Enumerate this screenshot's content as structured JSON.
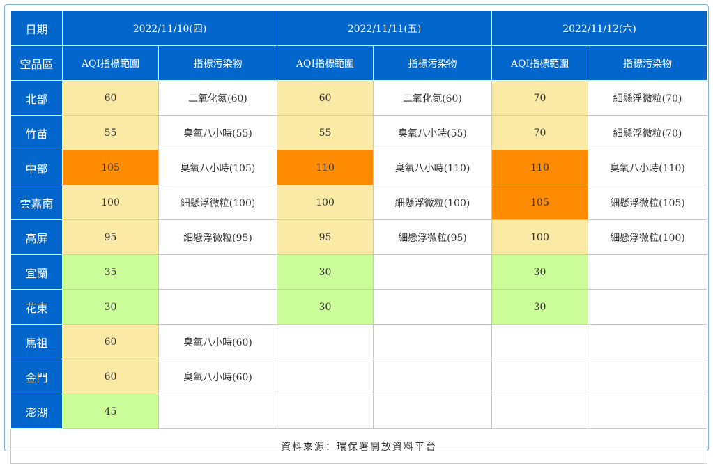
{
  "header": {
    "date_label": "日期",
    "dates": [
      "2022/11/10(四)",
      "2022/11/11(五)",
      "2022/11/12(六)"
    ],
    "region_label": "空品區",
    "aqi_label": "AQI指標範圍",
    "pollutant_label": "指標污染物"
  },
  "colors": {
    "header_bg": "#0066cc",
    "good_green": "#ccff99",
    "moderate_yellow": "#fbeaa5",
    "unhealthy_sensitive_orange": "#ff8c00"
  },
  "rows": [
    {
      "region": "北部",
      "days": [
        {
          "aqi": "60",
          "color": "yellow",
          "pollutant": "二氧化氮(60)"
        },
        {
          "aqi": "60",
          "color": "yellow",
          "pollutant": "二氧化氮(60)"
        },
        {
          "aqi": "70",
          "color": "yellow",
          "pollutant": "細懸浮微粒(70)"
        }
      ]
    },
    {
      "region": "竹苗",
      "days": [
        {
          "aqi": "55",
          "color": "yellow",
          "pollutant": "臭氧八小時(55)"
        },
        {
          "aqi": "55",
          "color": "yellow",
          "pollutant": "臭氧八小時(55)"
        },
        {
          "aqi": "70",
          "color": "yellow",
          "pollutant": "細懸浮微粒(70)"
        }
      ]
    },
    {
      "region": "中部",
      "days": [
        {
          "aqi": "105",
          "color": "orange",
          "pollutant": "臭氧八小時(105)"
        },
        {
          "aqi": "110",
          "color": "orange",
          "pollutant": "臭氧八小時(110)"
        },
        {
          "aqi": "110",
          "color": "orange",
          "pollutant": "臭氧八小時(110)"
        }
      ]
    },
    {
      "region": "雲嘉南",
      "days": [
        {
          "aqi": "100",
          "color": "yellow",
          "pollutant": "細懸浮微粒(100)"
        },
        {
          "aqi": "100",
          "color": "yellow",
          "pollutant": "細懸浮微粒(100)"
        },
        {
          "aqi": "105",
          "color": "orange",
          "pollutant": "細懸浮微粒(105)"
        }
      ]
    },
    {
      "region": "高屏",
      "days": [
        {
          "aqi": "95",
          "color": "yellow",
          "pollutant": "細懸浮微粒(95)"
        },
        {
          "aqi": "95",
          "color": "yellow",
          "pollutant": "細懸浮微粒(95)"
        },
        {
          "aqi": "100",
          "color": "yellow",
          "pollutant": "細懸浮微粒(100)"
        }
      ]
    },
    {
      "region": "宜蘭",
      "days": [
        {
          "aqi": "35",
          "color": "green",
          "pollutant": ""
        },
        {
          "aqi": "30",
          "color": "green",
          "pollutant": ""
        },
        {
          "aqi": "30",
          "color": "green",
          "pollutant": ""
        }
      ]
    },
    {
      "region": "花東",
      "days": [
        {
          "aqi": "30",
          "color": "green",
          "pollutant": ""
        },
        {
          "aqi": "30",
          "color": "green",
          "pollutant": ""
        },
        {
          "aqi": "30",
          "color": "green",
          "pollutant": ""
        }
      ]
    },
    {
      "region": "馬祖",
      "days": [
        {
          "aqi": "60",
          "color": "yellow",
          "pollutant": "臭氧八小時(60)"
        },
        {
          "aqi": "",
          "color": "none",
          "pollutant": ""
        },
        {
          "aqi": "",
          "color": "none",
          "pollutant": ""
        }
      ]
    },
    {
      "region": "金門",
      "days": [
        {
          "aqi": "60",
          "color": "yellow",
          "pollutant": "臭氧八小時(60)"
        },
        {
          "aqi": "",
          "color": "none",
          "pollutant": ""
        },
        {
          "aqi": "",
          "color": "none",
          "pollutant": ""
        }
      ]
    },
    {
      "region": "澎湖",
      "days": [
        {
          "aqi": "45",
          "color": "green",
          "pollutant": ""
        },
        {
          "aqi": "",
          "color": "none",
          "pollutant": ""
        },
        {
          "aqi": "",
          "color": "none",
          "pollutant": ""
        }
      ]
    }
  ],
  "footer": {
    "source": "資料來源：環保署開放資料平台"
  }
}
